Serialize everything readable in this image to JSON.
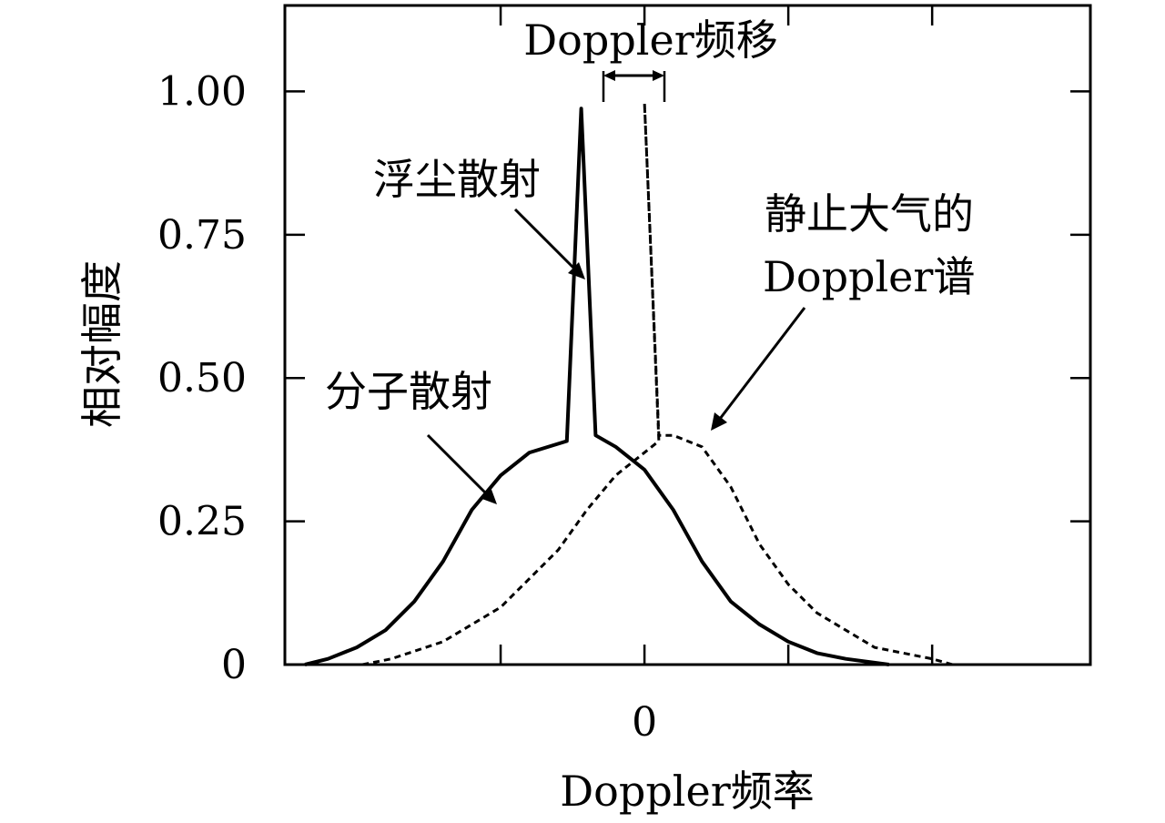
{
  "chart_data": {
    "type": "line",
    "title": "",
    "xlabel": "Doppler频率",
    "ylabel": "相对幅度",
    "xlim": [
      -12.5,
      15.5
    ],
    "ylim": [
      0,
      1.15
    ],
    "x_ticks": [
      -5,
      0,
      5,
      10
    ],
    "x_tick_labels": [
      {
        "x": 0,
        "text": "0"
      }
    ],
    "y_ticks": [
      0,
      0.25,
      0.5,
      0.75,
      1.0
    ],
    "y_tick_labels": [
      "0",
      "0.25",
      "0.50",
      "0.75",
      "1.00"
    ],
    "grid": false,
    "legend": "none",
    "series": [
      {
        "style": "solid",
        "color": "#000000",
        "points": [
          [
            -11.8,
            0.0
          ],
          [
            -11.0,
            0.01
          ],
          [
            -10.0,
            0.03
          ],
          [
            -9.0,
            0.06
          ],
          [
            -8.0,
            0.11
          ],
          [
            -7.0,
            0.18
          ],
          [
            -6.0,
            0.27
          ],
          [
            -5.0,
            0.33
          ],
          [
            -4.0,
            0.37
          ],
          [
            -2.7,
            0.39
          ],
          [
            -2.2,
            0.97
          ],
          [
            -1.7,
            0.4
          ],
          [
            -1.0,
            0.38
          ],
          [
            0.0,
            0.34
          ],
          [
            1.0,
            0.27
          ],
          [
            2.0,
            0.18
          ],
          [
            3.0,
            0.11
          ],
          [
            4.0,
            0.07
          ],
          [
            5.0,
            0.04
          ],
          [
            6.0,
            0.02
          ],
          [
            7.0,
            0.01
          ],
          [
            8.5,
            0.0
          ]
        ]
      },
      {
        "style": "dashed",
        "color": "#000000",
        "points": [
          [
            -9.8,
            0.0
          ],
          [
            -8.8,
            0.01
          ],
          [
            -7.0,
            0.04
          ],
          [
            -5.0,
            0.1
          ],
          [
            -3.0,
            0.2
          ],
          [
            -2.0,
            0.27
          ],
          [
            -1.0,
            0.33
          ],
          [
            0.0,
            0.37
          ],
          [
            0.5,
            0.39
          ],
          [
            0.0,
            0.98
          ],
          [
            0.5,
            0.4
          ],
          [
            1.0,
            0.4
          ],
          [
            2.0,
            0.38
          ],
          [
            3.0,
            0.31
          ],
          [
            4.0,
            0.21
          ],
          [
            5.0,
            0.14
          ],
          [
            6.0,
            0.09
          ],
          [
            7.0,
            0.06
          ],
          [
            8.0,
            0.03
          ],
          [
            9.0,
            0.02
          ],
          [
            10.0,
            0.01
          ],
          [
            10.7,
            0.0
          ]
        ]
      }
    ],
    "annotations": [
      {
        "text": "Doppler频移",
        "type": "dimension",
        "x_from": -2.2,
        "x_to": 0.0
      },
      {
        "text": "浮尘散射",
        "arrow_to": [
          -2.5,
          0.67
        ]
      },
      {
        "text": "静止大气的",
        "text2": "Doppler谱",
        "arrow_to": [
          1.7,
          0.41
        ]
      },
      {
        "text": "分子散射",
        "arrow_to": [
          -5.9,
          0.28
        ]
      }
    ]
  }
}
